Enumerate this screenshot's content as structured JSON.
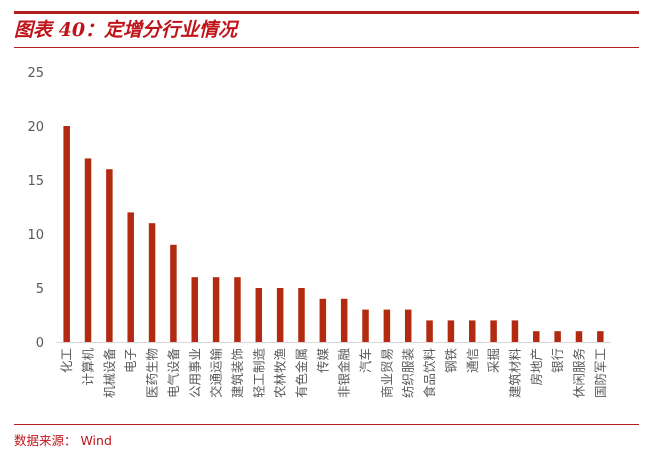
{
  "header": {
    "title": "图表 40：定增分行业情况"
  },
  "footer": {
    "source": "数据来源： Wind"
  },
  "colors": {
    "accent": "#c0141b",
    "bar": "#b22a10",
    "tick_text": "#595959",
    "axis": "#d9d9d9"
  },
  "chart_data": {
    "type": "bar",
    "title": "",
    "xlabel": "",
    "ylabel": "",
    "ylim": [
      0,
      25
    ],
    "yticks": [
      0,
      5,
      10,
      15,
      20,
      25
    ],
    "grid": false,
    "legend": "none",
    "categories": [
      "化工",
      "计算机",
      "机械设备",
      "电子",
      "医药生物",
      "电气设备",
      "公用事业",
      "交通运输",
      "建筑装饰",
      "轻工制造",
      "农林牧渔",
      "有色金属",
      "传媒",
      "非银金融",
      "汽车",
      "商业贸易",
      "纺织服装",
      "食品饮料",
      "钢铁",
      "通信",
      "采掘",
      "建筑材料",
      "房地产",
      "银行",
      "休闲服务",
      "国防军工"
    ],
    "series": [
      {
        "values": [
          20,
          17,
          16,
          12,
          11,
          9,
          6,
          6,
          6,
          5,
          5,
          5,
          4,
          4,
          3,
          3,
          3,
          2,
          2,
          2,
          2,
          2,
          1,
          1,
          1,
          1
        ]
      }
    ]
  }
}
